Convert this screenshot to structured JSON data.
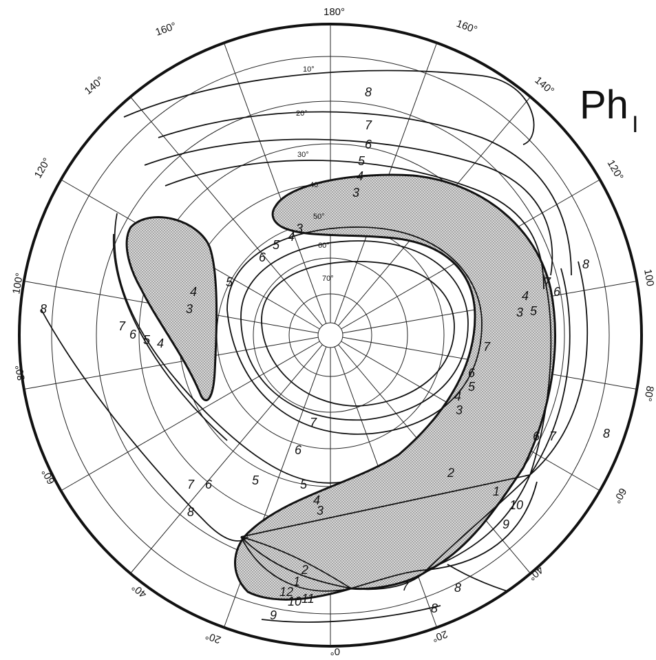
{
  "title": {
    "main": "Ph",
    "subscript": "I"
  },
  "longitude_labels": {
    "top": "180°",
    "top_left": "160°",
    "top_right": "160°",
    "upper_left": "140°",
    "upper_right": "140°",
    "left_high": "120°",
    "right_high": "120°",
    "left_mid": "100°",
    "right_mid": "100",
    "left_low": "80°",
    "right_low": "80°",
    "lower_left": "60°",
    "lower_right": "60°",
    "bottom_left": "40°",
    "bottom_right": "40°",
    "bottom_left2": "20°",
    "bottom_right2": "20°",
    "bottom": "0°"
  },
  "latitude_labels": [
    "10°",
    "20°",
    "30°",
    "40°",
    "50°",
    "60°",
    "70°"
  ],
  "isoline_labels": [
    "1",
    "2",
    "3",
    "4",
    "5",
    "6",
    "7",
    "8",
    "9",
    "10",
    "11",
    "12"
  ],
  "colors": {
    "ink": "#111111",
    "shade": "#cfcfcf",
    "paper": "#ffffff"
  }
}
